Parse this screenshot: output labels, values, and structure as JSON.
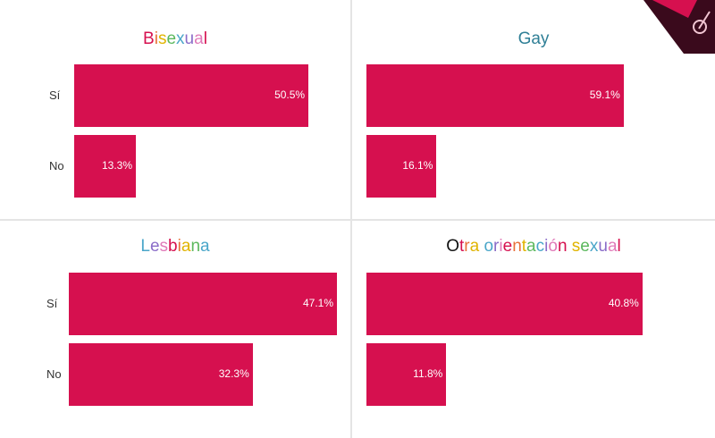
{
  "chart_data": [
    {
      "type": "bar",
      "orientation": "horizontal",
      "title": "Bisexual",
      "categories": [
        "Sí",
        "No"
      ],
      "values": [
        50.5,
        13.3
      ],
      "value_labels": [
        "50.5%",
        "13.3%"
      ]
    },
    {
      "type": "bar",
      "orientation": "horizontal",
      "title": "Gay",
      "categories": [
        "Sí",
        "No"
      ],
      "values": [
        59.1,
        16.1
      ],
      "value_labels": [
        "59.1%",
        "16.1%"
      ]
    },
    {
      "type": "bar",
      "orientation": "horizontal",
      "title": "Lesbiana",
      "categories": [
        "Sí",
        "No"
      ],
      "values": [
        47.1,
        32.3
      ],
      "value_labels": [
        "47.1%",
        "32.3%"
      ]
    },
    {
      "type": "bar",
      "orientation": "horizontal",
      "title": "Otra orientación sexual",
      "categories": [
        "Sí",
        "No"
      ],
      "values": [
        40.8,
        11.8
      ],
      "value_labels": [
        "40.8%",
        "11.8%"
      ]
    }
  ],
  "colors": {
    "bar": "#d6104f",
    "title_palette": [
      "#d6104f",
      "#e8703a",
      "#e0b400",
      "#5bb85d",
      "#4aa6c9",
      "#8a6cc8",
      "#e07ab8"
    ]
  }
}
